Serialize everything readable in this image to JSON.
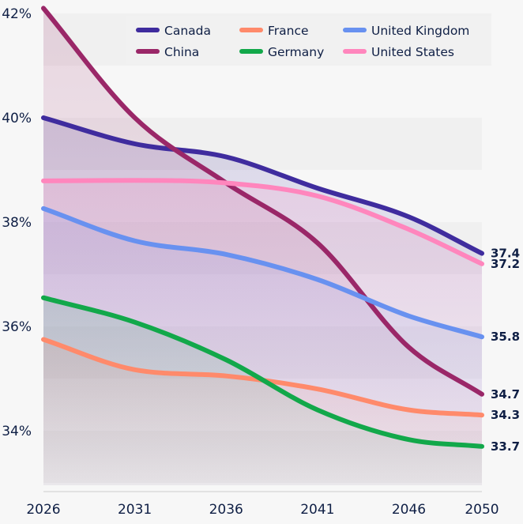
{
  "chart_data": {
    "type": "line",
    "title": "",
    "xlabel": "",
    "ylabel": "",
    "x": [
      2026,
      2031,
      2036,
      2041,
      2046,
      2050
    ],
    "x_ticks": [
      "2026",
      "2031",
      "2036",
      "2041",
      "2046",
      "2050"
    ],
    "y_ticks": [
      {
        "value": 34,
        "label": "34%"
      },
      {
        "value": 36,
        "label": "36%"
      },
      {
        "value": 38,
        "label": "38%"
      },
      {
        "value": 40,
        "label": "40%"
      },
      {
        "value": 42,
        "label": "42%"
      }
    ],
    "ylim": [
      33,
      42
    ],
    "grid": "alternating horizontal bands",
    "legend_position": "top",
    "series": [
      {
        "name": "Canada",
        "color": "#3f2c9e",
        "values": [
          40.0,
          39.5,
          39.25,
          38.65,
          38.1,
          37.4
        ],
        "end_label": "37.4"
      },
      {
        "name": "China",
        "color": "#9a2768",
        "values": [
          42.1,
          40.0,
          38.75,
          37.6,
          35.6,
          34.7
        ],
        "end_label": "34.7"
      },
      {
        "name": "France",
        "color": "#ff8a6b",
        "values": [
          35.75,
          35.17,
          35.05,
          34.8,
          34.4,
          34.3
        ],
        "end_label": "34.3"
      },
      {
        "name": "Germany",
        "color": "#12a84a",
        "values": [
          36.55,
          36.08,
          35.36,
          34.4,
          33.83,
          33.7
        ],
        "end_label": "33.7"
      },
      {
        "name": "United Kingdom",
        "color": "#6891f0",
        "values": [
          38.26,
          37.64,
          37.38,
          36.9,
          36.2,
          35.8
        ],
        "end_label": "35.8"
      },
      {
        "name": "United States",
        "color": "#ff86bd",
        "values": [
          38.79,
          38.8,
          38.75,
          38.5,
          37.86,
          37.2
        ],
        "end_label": "37.2"
      }
    ],
    "legend_order": [
      "Canada",
      "France",
      "United Kingdom",
      "China",
      "Germany",
      "United States"
    ]
  }
}
